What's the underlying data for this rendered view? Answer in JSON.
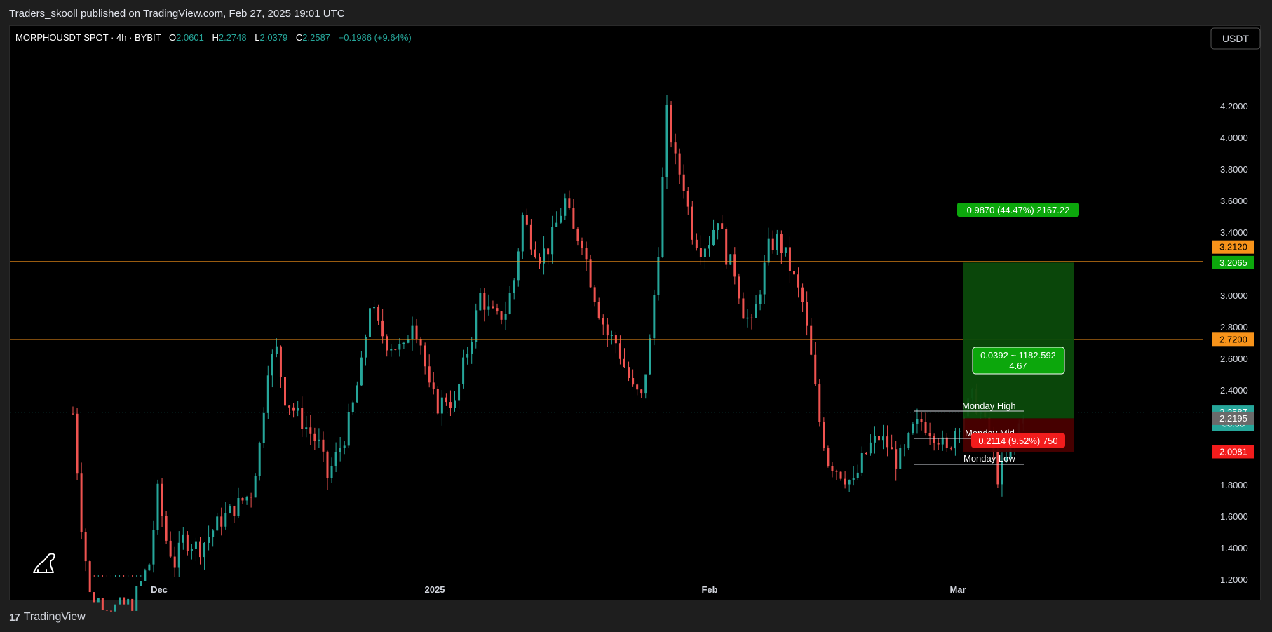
{
  "header": {
    "published_text": "Traders_skooll published on TradingView.com, Feb 27, 2025 19:01 UTC"
  },
  "legend": {
    "symbol": "MORPHOUSDT SPOT · 4h · BYBIT",
    "open_label": "O",
    "open": "2.0601",
    "high_label": "H",
    "high": "2.2748",
    "low_label": "L",
    "low": "2.0379",
    "close_label": "C",
    "close": "2.2587",
    "change": "+0.1986 (+9.64%)"
  },
  "currency_button": "USDT",
  "footer": {
    "logo_mark": "17",
    "brand": "TradingView"
  },
  "colors": {
    "up": "#26a69a",
    "down": "#ef5350",
    "level": "#f7931a",
    "target_zone": "#0a4a0a",
    "stop_zone": "#4a0000",
    "label_green": "#089981",
    "label_red": "#f23645"
  },
  "annotations": {
    "target_label": "0.9870 (44.47%) 2167.22",
    "stop_label": "0.2114 (9.52%) 750",
    "mid_label_line1": "0.0392 ~ 1182.592",
    "mid_label_line2": "4.67",
    "monday_high": "Monday High",
    "monday_mid": "Monday Mid",
    "monday_low": "Monday Low"
  },
  "price_tags": {
    "level_upper_orange": "3.2120",
    "target_green": "3.2065",
    "level_lower_orange": "2.7200",
    "last_price": "2.2587",
    "countdown": "58:08",
    "entry_gray": "2.2195",
    "stop_red": "2.0081"
  },
  "chart_data": {
    "type": "candlestick",
    "symbol": "MORPHOUSDT",
    "interval": "4h",
    "exchange": "BYBIT",
    "y_ticks": [
      1.2,
      1.4,
      1.6,
      1.8,
      2.4,
      2.6,
      2.8,
      3.0,
      3.4,
      3.6,
      3.8,
      4.0,
      4.2
    ],
    "x_ticks": [
      "Dec",
      "2025",
      "Feb",
      "Mar"
    ],
    "ylim": [
      1.0,
      4.42
    ],
    "horizontal_levels": [
      3.212,
      2.72
    ],
    "last_price": 2.2587,
    "position": {
      "type": "long",
      "entry": 2.2195,
      "target": 3.2065,
      "stop": 2.0081
    },
    "monday_levels": {
      "high": 2.2748,
      "mid": 2.11,
      "low": 1.95
    },
    "price_path": [
      [
        0,
        2.25
      ],
      [
        2,
        1.55
      ],
      [
        4,
        1.1
      ],
      [
        10,
        1.02
      ],
      [
        14,
        1.05
      ],
      [
        18,
        1.3
      ],
      [
        20,
        1.75
      ],
      [
        22,
        1.45
      ],
      [
        24,
        1.3
      ],
      [
        26,
        1.45
      ],
      [
        30,
        1.4
      ],
      [
        34,
        1.55
      ],
      [
        38,
        1.65
      ],
      [
        42,
        1.75
      ],
      [
        44,
        2.05
      ],
      [
        46,
        2.55
      ],
      [
        48,
        2.65
      ],
      [
        50,
        2.35
      ],
      [
        54,
        2.2
      ],
      [
        58,
        2.05
      ],
      [
        60,
        1.85
      ],
      [
        64,
        2.1
      ],
      [
        66,
        2.3
      ],
      [
        68,
        2.55
      ],
      [
        70,
        2.95
      ],
      [
        72,
        2.8
      ],
      [
        74,
        2.7
      ],
      [
        78,
        2.65
      ],
      [
        80,
        2.85
      ],
      [
        82,
        2.7
      ],
      [
        84,
        2.4
      ],
      [
        86,
        2.3
      ],
      [
        88,
        2.35
      ],
      [
        90,
        2.3
      ],
      [
        92,
        2.55
      ],
      [
        94,
        2.75
      ],
      [
        96,
        3.0
      ],
      [
        98,
        2.9
      ],
      [
        100,
        2.85
      ],
      [
        102,
        2.9
      ],
      [
        104,
        3.1
      ],
      [
        106,
        3.5
      ],
      [
        108,
        3.35
      ],
      [
        110,
        3.25
      ],
      [
        112,
        3.3
      ],
      [
        114,
        3.45
      ],
      [
        116,
        3.6
      ],
      [
        118,
        3.4
      ],
      [
        120,
        3.35
      ],
      [
        122,
        3.1
      ],
      [
        124,
        2.9
      ],
      [
        126,
        2.75
      ],
      [
        128,
        2.7
      ],
      [
        130,
        2.55
      ],
      [
        132,
        2.4
      ],
      [
        134,
        2.35
      ],
      [
        136,
        2.7
      ],
      [
        138,
        3.3
      ],
      [
        140,
        4.15
      ],
      [
        142,
        3.85
      ],
      [
        144,
        3.7
      ],
      [
        146,
        3.4
      ],
      [
        148,
        3.3
      ],
      [
        150,
        3.35
      ],
      [
        152,
        3.5
      ],
      [
        154,
        3.25
      ],
      [
        156,
        3.15
      ],
      [
        158,
        2.9
      ],
      [
        160,
        2.8
      ],
      [
        162,
        3.05
      ],
      [
        164,
        3.3
      ],
      [
        166,
        3.35
      ],
      [
        168,
        3.25
      ],
      [
        170,
        3.1
      ],
      [
        172,
        2.95
      ],
      [
        174,
        2.6
      ],
      [
        176,
        2.2
      ],
      [
        178,
        1.95
      ],
      [
        180,
        1.9
      ],
      [
        182,
        1.85
      ],
      [
        184,
        1.8
      ],
      [
        186,
        1.95
      ],
      [
        188,
        2.05
      ],
      [
        190,
        2.1
      ],
      [
        192,
        2.05
      ],
      [
        194,
        1.95
      ],
      [
        196,
        2.0
      ],
      [
        198,
        2.15
      ],
      [
        200,
        2.2
      ],
      [
        202,
        2.15
      ],
      [
        204,
        2.1
      ],
      [
        206,
        2.0
      ],
      [
        208,
        2.15
      ],
      [
        210,
        2.25
      ],
      [
        212,
        2.35
      ],
      [
        214,
        2.25
      ],
      [
        216,
        2.1
      ],
      [
        218,
        1.85
      ],
      [
        220,
        1.95
      ],
      [
        222,
        2.1
      ],
      [
        224,
        2.2587
      ]
    ]
  }
}
